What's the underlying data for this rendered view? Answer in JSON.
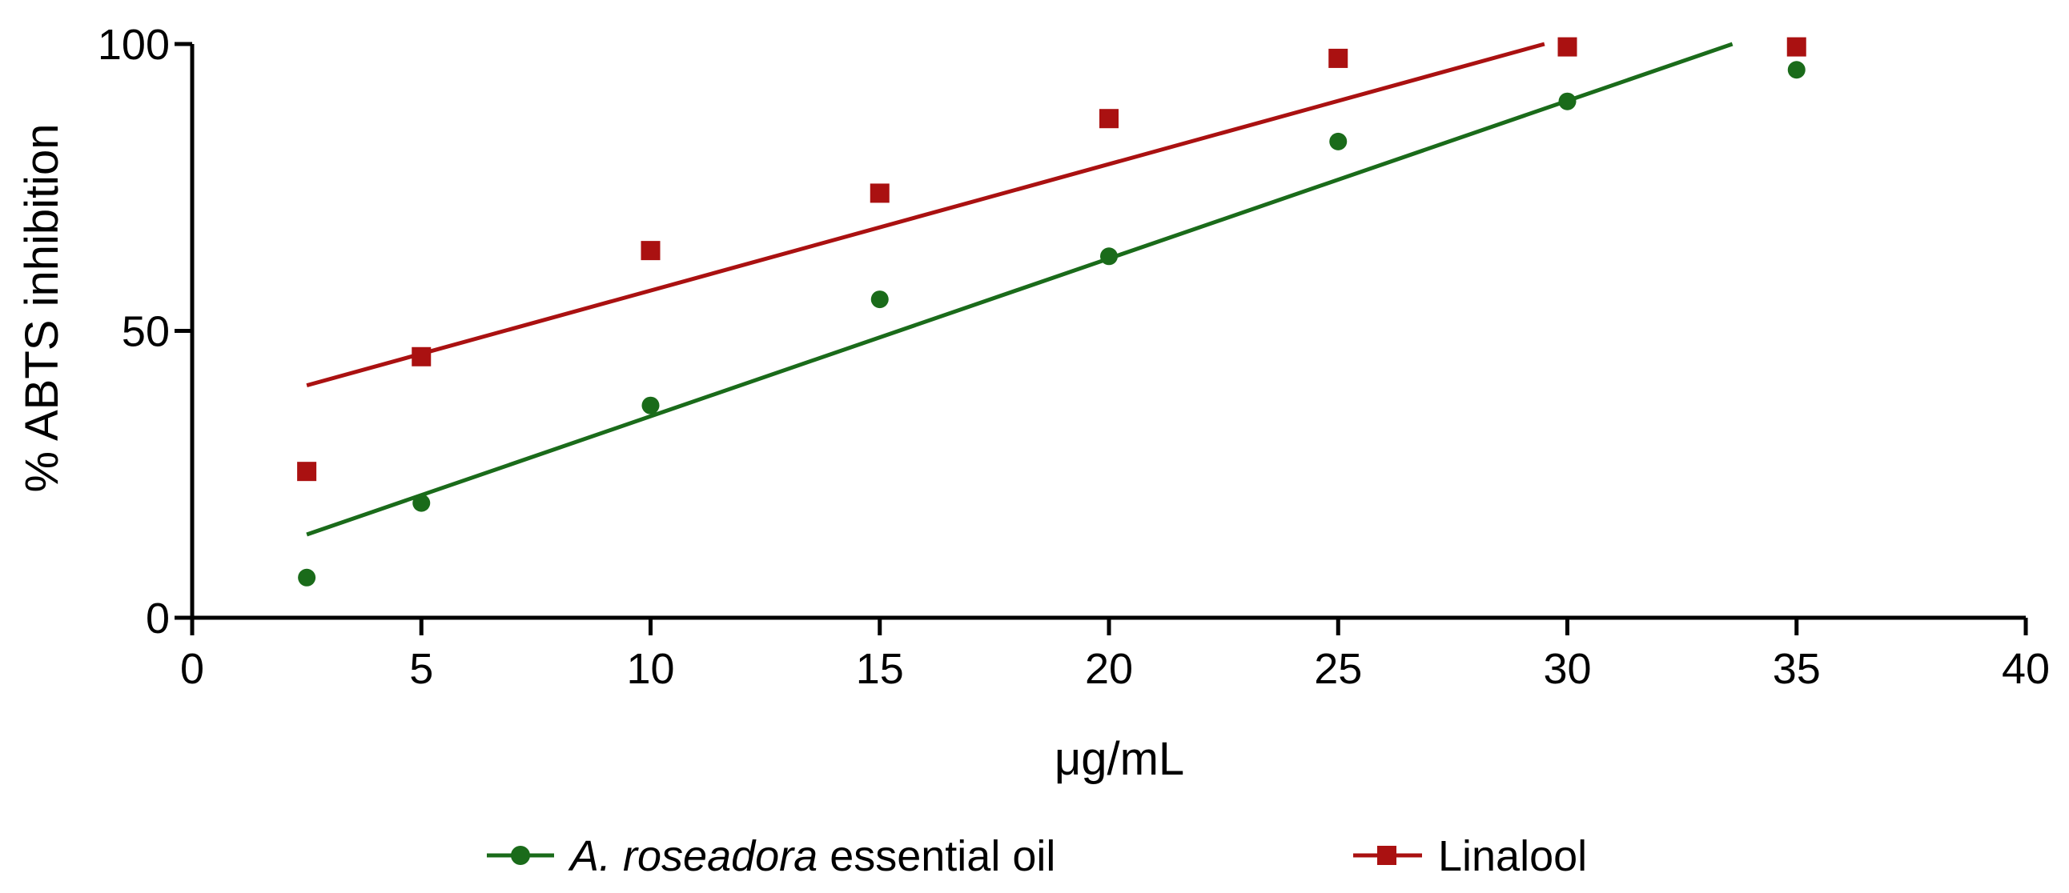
{
  "chart_data": {
    "type": "scatter",
    "title": "",
    "xlabel": "μg/mL",
    "ylabel": "% ABTS inhibition",
    "xlim": [
      0,
      40
    ],
    "ylim": [
      0,
      100
    ],
    "x_ticks": [
      0,
      5,
      10,
      15,
      20,
      25,
      30,
      35,
      40
    ],
    "y_ticks": [
      0,
      50,
      100
    ],
    "x_tick_labels": [
      "0",
      "5",
      "10",
      "15",
      "20",
      "25",
      "30",
      "35",
      "40"
    ],
    "y_tick_labels": [
      "0",
      "50",
      "100"
    ],
    "grid": false,
    "legend_position": "bottom",
    "series": [
      {
        "name": "A. roseadora essential oil",
        "name_italic": "A. roseadora",
        "name_rest": " essential oil",
        "color": "#1a6b1a",
        "marker": "circle",
        "x": [
          2.5,
          5,
          10,
          15,
          20,
          25,
          30,
          35
        ],
        "y": [
          7,
          20,
          37,
          55.5,
          63,
          83,
          90,
          95.5
        ],
        "fit": {
          "x_start": 2.5,
          "y_start": 14.5,
          "x_end": 33.6,
          "y_end": 100
        }
      },
      {
        "name": "Linalool",
        "color": "#aa1111",
        "marker": "square",
        "x": [
          2.5,
          5,
          10,
          15,
          20,
          25,
          30,
          35
        ],
        "y": [
          25.5,
          45.5,
          64,
          74,
          87,
          97.5,
          99.5,
          99.5
        ],
        "fit": {
          "x_start": 2.5,
          "y_start": 40.5,
          "x_end": 29.5,
          "y_end": 100
        }
      }
    ]
  }
}
